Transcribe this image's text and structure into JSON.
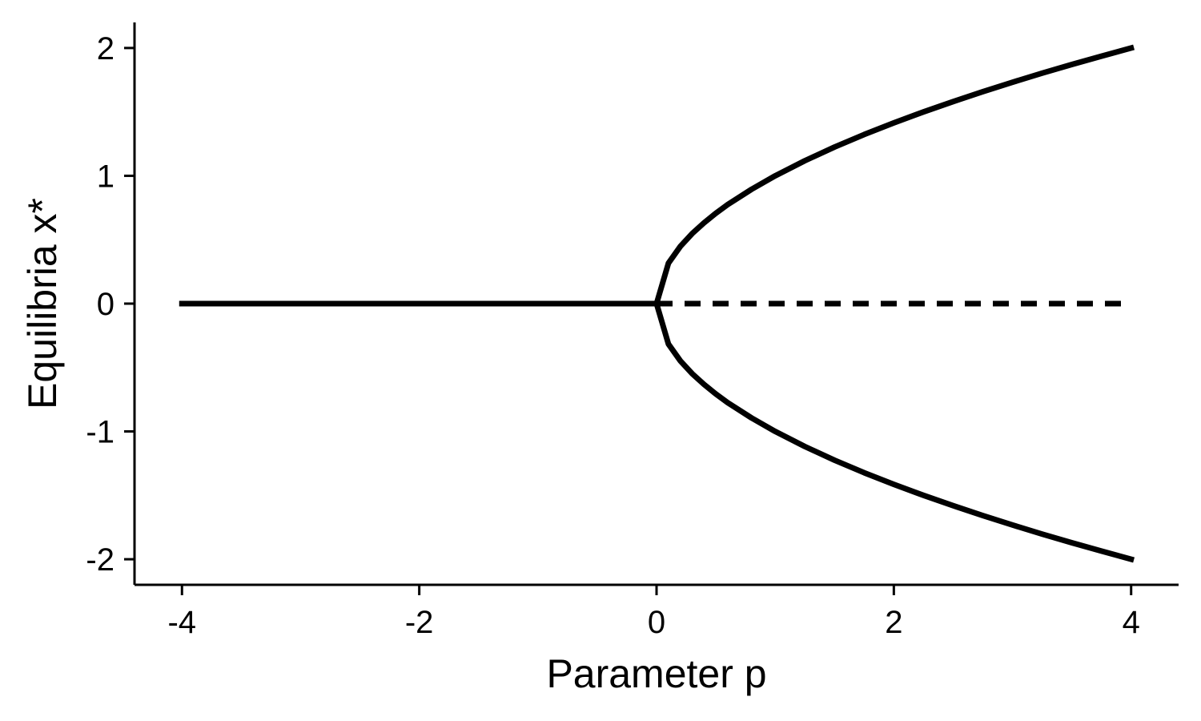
{
  "chart_data": {
    "type": "line",
    "title": "",
    "xlabel": "Parameter p",
    "ylabel": "Equilibria x*",
    "xlim": [
      -4.4,
      4.4
    ],
    "ylim": [
      -2.2,
      2.2
    ],
    "x_ticks": [
      -4,
      -2,
      0,
      2,
      4
    ],
    "y_ticks": [
      -2,
      -1,
      0,
      1,
      2
    ],
    "x_tick_labels": [
      "-4",
      "-2",
      "0",
      "2",
      "4"
    ],
    "y_tick_labels": [
      "-2",
      "-1",
      "0",
      "1",
      "2"
    ],
    "grid": false,
    "legend": "none",
    "line_color": "#000000",
    "series": [
      {
        "style": "solid",
        "x": [
          -4,
          0
        ],
        "y": [
          0,
          0
        ]
      },
      {
        "style": "dashed",
        "x": [
          0,
          4
        ],
        "y": [
          0,
          0
        ]
      },
      {
        "style": "solid",
        "x": [
          0,
          0.1,
          0.2,
          0.3,
          0.4,
          0.5,
          0.6,
          0.8,
          1.0,
          1.25,
          1.5,
          1.75,
          2.0,
          2.25,
          2.5,
          2.75,
          3.0,
          3.25,
          3.5,
          3.75,
          4.0
        ],
        "y": [
          0,
          0.316,
          0.447,
          0.548,
          0.632,
          0.707,
          0.775,
          0.894,
          1.0,
          1.118,
          1.225,
          1.323,
          1.414,
          1.5,
          1.581,
          1.658,
          1.732,
          1.803,
          1.871,
          1.936,
          2.0
        ]
      },
      {
        "style": "solid",
        "x": [
          0,
          0.1,
          0.2,
          0.3,
          0.4,
          0.5,
          0.6,
          0.8,
          1.0,
          1.25,
          1.5,
          1.75,
          2.0,
          2.25,
          2.5,
          2.75,
          3.0,
          3.25,
          3.5,
          3.75,
          4.0
        ],
        "y": [
          0,
          -0.316,
          -0.447,
          -0.548,
          -0.632,
          -0.707,
          -0.775,
          -0.894,
          -1.0,
          -1.118,
          -1.225,
          -1.323,
          -1.414,
          -1.5,
          -1.581,
          -1.658,
          -1.732,
          -1.803,
          -1.871,
          -1.936,
          -2.0
        ]
      }
    ]
  }
}
